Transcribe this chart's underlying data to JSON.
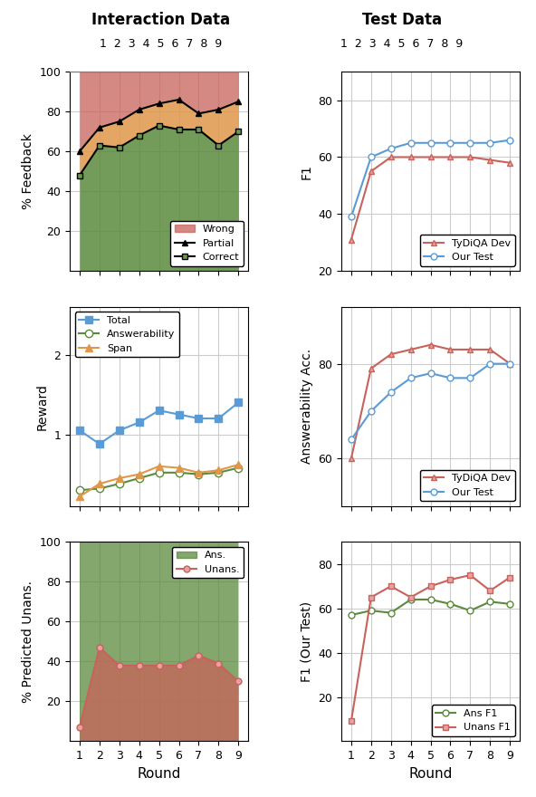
{
  "rounds": [
    1,
    2,
    3,
    4,
    5,
    6,
    7,
    8,
    9
  ],
  "interaction_title": "Interaction Data",
  "test_title": "Test Data",
  "feedback_partial": [
    60,
    72,
    75,
    81,
    84,
    86,
    79,
    81,
    85
  ],
  "feedback_correct": [
    48,
    63,
    62,
    68,
    73,
    71,
    71,
    63,
    70
  ],
  "reward_total": [
    1.05,
    0.88,
    1.05,
    1.15,
    1.3,
    1.25,
    1.2,
    1.2,
    1.4
  ],
  "reward_answerability": [
    0.3,
    0.32,
    0.38,
    0.45,
    0.52,
    0.52,
    0.5,
    0.52,
    0.58
  ],
  "reward_span": [
    0.22,
    0.38,
    0.45,
    0.5,
    0.6,
    0.58,
    0.52,
    0.55,
    0.62
  ],
  "pred_unans_unans": [
    7,
    47,
    38,
    38,
    38,
    38,
    43,
    39,
    30
  ],
  "test_f1_tydiqa": [
    31,
    55,
    60,
    60,
    60,
    60,
    60,
    59,
    58
  ],
  "test_f1_ourtest": [
    39,
    60,
    63,
    65,
    65,
    65,
    65,
    65,
    66
  ],
  "test_ansacc_tydiqa": [
    60,
    79,
    82,
    83,
    84,
    83,
    83,
    83,
    80
  ],
  "test_ansacc_ourtest": [
    64,
    70,
    74,
    77,
    78,
    77,
    77,
    80,
    80
  ],
  "test_ansf1": [
    57,
    59,
    58,
    64,
    64,
    62,
    59,
    63,
    62
  ],
  "test_unansf1": [
    9,
    65,
    70,
    65,
    70,
    73,
    75,
    68,
    74
  ],
  "color_wrong": "#c8625a",
  "color_partial_fill": "#e0974a",
  "color_correct_fill": "#5a8a3c",
  "color_total": "#5b9bd5",
  "color_answerability": "#5a8a3c",
  "color_span": "#e0974a",
  "color_ans_fill": "#5a8a3c",
  "color_unans_fill": "#c8625a",
  "color_unans_line": "#c8625a",
  "color_tydiqa": "#c8625a",
  "color_ourtest": "#5b9bd5",
  "color_ansf1": "#5a8a3c",
  "color_unansf1": "#c8625a",
  "xlabel": "Round",
  "ylabel_feedback": "% Feedback",
  "ylabel_reward": "Reward",
  "ylabel_predunans": "% Predicted Unans.",
  "ylabel_f1": "F1",
  "ylabel_ansacc": "Answerability Acc.",
  "ylabel_f1ourtest": "F1 (Our Test)"
}
